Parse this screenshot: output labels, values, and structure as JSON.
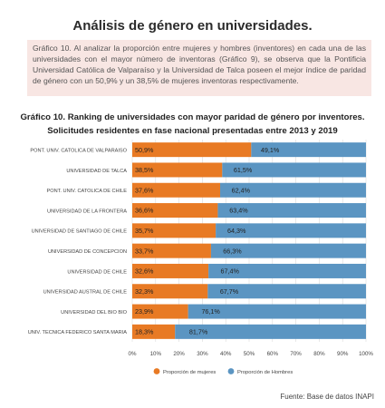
{
  "heading": "Análisis de género en universidades.",
  "paragraph": "Gráfico 10. Al analizar la proporción entre mujeres y hombres (inventores) en cada una de las universidades con el mayor número de inventoras (Gráfico 9), se observa que la Pontificia Universidad Católica de Valparaíso y la Universidad de Talca poseen el mejor índice de paridad de género con un 50,9% y un 38,5% de mujeres inventoras respectivamente.",
  "source": "Fuente: Base de datos INAPI",
  "colors": {
    "mujeres": "#e87a24",
    "hombres": "#5b95c2"
  },
  "chart_data": {
    "type": "bar",
    "orientation": "horizontal",
    "stacked": true,
    "title": "Gráfico 10. Ranking de universidades con mayor paridad de género por inventores.",
    "subtitle": "Solicitudes residentes en fase nacional presentadas entre 2013 y 2019",
    "categories": [
      "PONT. UNIV. CATOLICA DE VALPARAISO",
      "UNIVERSIDAD DE TALCA",
      "PONT. UNIV. CATOLICA DE CHILE",
      "UNIVERSIDAD DE LA FRONTERA",
      "UNIVERSIDAD DE SANTIAGO DE CHILE",
      "UNIVERSIDAD DE CONCEPCION",
      "UNIVERSIDAD DE CHILE",
      "UNIVERSIDAD AUSTRAL DE CHILE",
      "UNIVERSIDAD DEL BIO BIO",
      "UNIV. TECNICA FEDERICO SANTA MARIA"
    ],
    "series": [
      {
        "name": "Proporción de mujeres",
        "values": [
          50.9,
          38.5,
          37.6,
          36.6,
          35.7,
          33.7,
          32.6,
          32.3,
          23.9,
          18.3
        ],
        "labels": [
          "50,9%",
          "38,5%",
          "37,6%",
          "36,6%",
          "35,7%",
          "33,7%",
          "32,6%",
          "32,3%",
          "23,9%",
          "18,3%"
        ]
      },
      {
        "name": "Proporción de Hombres",
        "values": [
          49.1,
          61.5,
          62.4,
          63.4,
          64.3,
          66.3,
          67.4,
          67.7,
          76.1,
          81.7
        ],
        "labels": [
          "49,1%",
          "61,5%",
          "62,4%",
          "63,4%",
          "64,3%",
          "66,3%",
          "67,4%",
          "67,7%",
          "76,1%",
          "81,7%"
        ]
      }
    ],
    "xlim": [
      0,
      100
    ],
    "xticks": [
      "0%",
      "10%",
      "20%",
      "30%",
      "40%",
      "50%",
      "60%",
      "70%",
      "80%",
      "90%",
      "100%"
    ],
    "grid": true,
    "legend_position": "bottom"
  }
}
